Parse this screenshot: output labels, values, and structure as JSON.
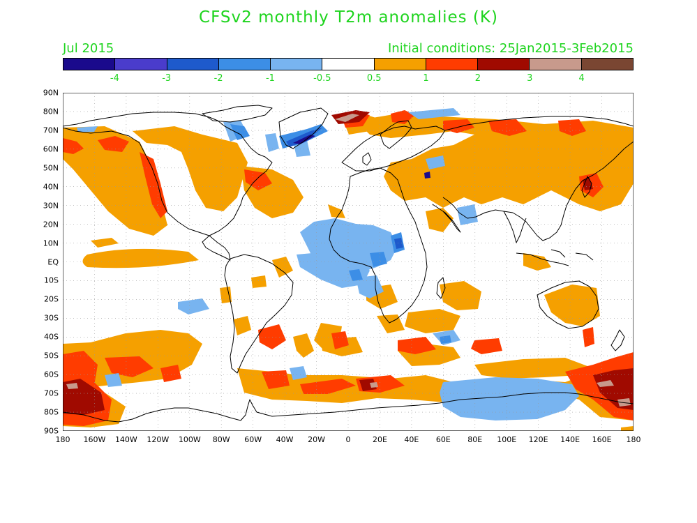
{
  "title": "CFSv2 monthly T2m anomalies (K)",
  "month_label": "Jul 2015",
  "initial_conditions": "Initial conditions: 25Jan2015-3Feb2015",
  "colorbar": {
    "colors": [
      "#1a0a8c",
      "#4a3ccc",
      "#1e5acc",
      "#3c8ee6",
      "#78b4f0",
      "#ffffff",
      "#f5a000",
      "#ff3c00",
      "#a00a00",
      "#c89a8c",
      "#7a4632"
    ],
    "labels": [
      "-4",
      "-3",
      "-2",
      "-1",
      "-0.5",
      "0.5",
      "1",
      "2",
      "3",
      "4"
    ]
  },
  "lat_labels": [
    "90N",
    "80N",
    "70N",
    "60N",
    "50N",
    "40N",
    "30N",
    "20N",
    "10N",
    "EQ",
    "10S",
    "20S",
    "30S",
    "40S",
    "50S",
    "60S",
    "70S",
    "80S",
    "90S"
  ],
  "lon_labels": [
    "180",
    "160W",
    "140W",
    "120W",
    "100W",
    "80W",
    "60W",
    "40W",
    "20W",
    "0",
    "20E",
    "40E",
    "60E",
    "80E",
    "100E",
    "120E",
    "140E",
    "160E",
    "180"
  ],
  "legend_colors": {
    "warm_light": "#f5a000",
    "warm_mid": "#ff3c00",
    "warm_dark": "#a00a00",
    "warm_max": "#c89a8c",
    "cool_light": "#78b4f0",
    "cool_mid": "#3c8ee6",
    "cool_dark": "#1e5acc",
    "cool_max": "#1a0a8c",
    "text": "#1ed41e"
  }
}
